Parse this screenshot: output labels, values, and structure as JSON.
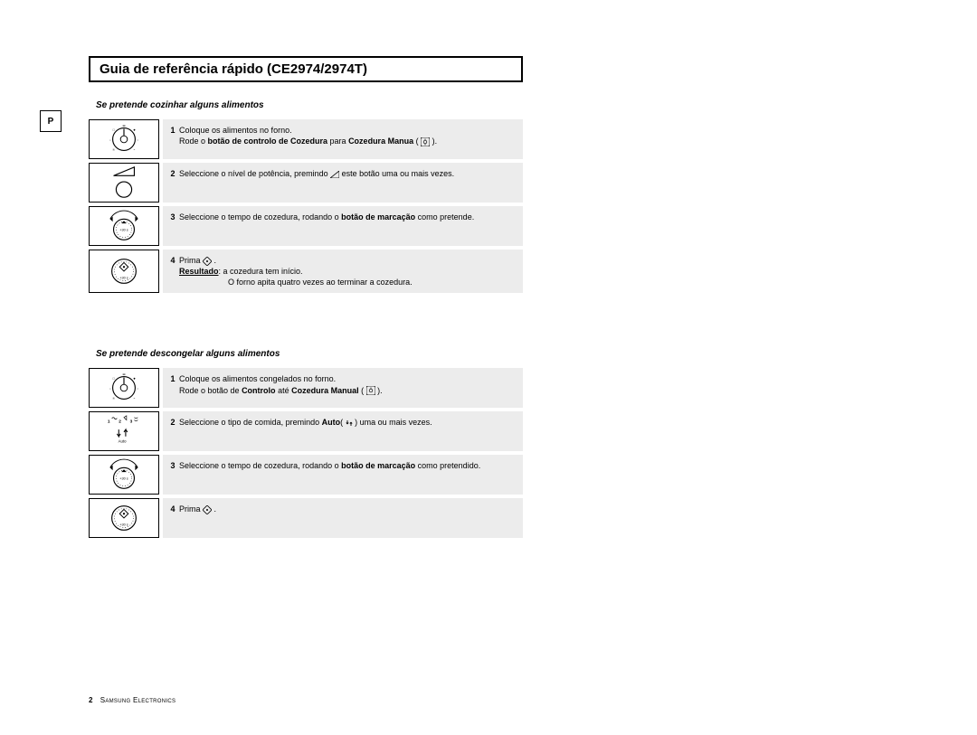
{
  "title": "Guia de referência rápido (CE2974/2974T)",
  "badge": "P",
  "sections": [
    {
      "heading": "Se pretende cozinhar alguns alimentos",
      "steps": [
        {
          "num": "1",
          "html": "Coloque os alimentos no forno.<br>Rode o <b>botão de controlo de Cozedura</b> para <b>Cozedura Manua</b> ( <span class='inline-icon'><svg width='10' height='10'><rect x='0' y='0' width='10' height='10' fill='none' stroke='#000' stroke-width='0.8' rx='2'/><circle cx='5' cy='5' r='1.8' fill='none' stroke='#000' stroke-width='0.7'/><line x1='5' y1='1.5' x2='5' y2='3' stroke='#000' stroke-width='0.7'/><line x1='5' y1='7' x2='5' y2='8.5' stroke='#000' stroke-width='0.7'/></svg></span> ).",
          "icon": "dial-mode"
        },
        {
          "num": "2",
          "html": "Seleccione o nível de potência, premindo  <span class='inline-icon'><svg width='10' height='8'><polygon points='0,8 10,8 10,0' fill='none' stroke='#000' stroke-width='0.8'/></svg></span>  este botão uma ou mais vezes.",
          "icon": "power-button"
        },
        {
          "num": "3",
          "html": "Seleccione o tempo de cozedura, rodando o <b>botão de marcação</b> como pretende.",
          "icon": "dial-time"
        },
        {
          "num": "4",
          "html": "Prima  <span class='inline-icon'><svg width='10' height='10'><polygon points='5,0 10,5 5,10 0,5' fill='none' stroke='#000' stroke-width='0.8'/><circle cx='5' cy='5' r='1' fill='#000'/></svg></span>  .<br><b><u>Resultado</u></b>:   a cozedura tem início.<br><span style='display:inline-block;width:54px'></span>O forno apita quatro vezes ao terminar a cozedura.",
          "icon": "dial-start"
        }
      ]
    },
    {
      "heading": "Se pretende descongelar alguns alimentos",
      "steps": [
        {
          "num": "1",
          "html": "Coloque os alimentos congelados no forno.<br>Rode o botão de <b>Controlo</b> até <b>Cozedura Manual</b> ( <span class='inline-icon'><svg width='10' height='10'><rect x='0' y='0' width='10' height='10' fill='none' stroke='#000' stroke-width='0.8' rx='2'/><circle cx='5' cy='5' r='1.8' fill='none' stroke='#000' stroke-width='0.7'/><line x1='5' y1='1.5' x2='5' y2='3' stroke='#000' stroke-width='0.7'/></svg></span> ).",
          "icon": "dial-mode"
        },
        {
          "num": "2",
          "html": "Seleccione o tipo de comida, premindo <b>Auto</b>( <span class='inline-icon'><svg width='8' height='8'><path d='M2 1 l0 4 M2 5 l-1.2 -1.5 M2 5 l1.2 -1.5 M6 7 l0 -4 M6 3 l-1.2 1.5 M6 3 l1.2 1.5' stroke='#000' stroke-width='0.9' fill='none'/></svg></span> ) uma ou mais vezes.",
          "icon": "auto-button"
        },
        {
          "num": "3",
          "html": "Seleccione o tempo de cozedura, rodando o <b>botão de marcação</b> como pretendido.",
          "icon": "dial-time"
        },
        {
          "num": "4",
          "html": "Prima  <span class='inline-icon'><svg width='10' height='10'><polygon points='5,0 10,5 5,10 0,5' fill='none' stroke='#000' stroke-width='0.8'/><circle cx='5' cy='5' r='1' fill='#000'/></svg></span>  .",
          "icon": "dial-start"
        }
      ]
    }
  ],
  "footer": {
    "page": "2",
    "brand": "Samsung Electronics"
  },
  "colors": {
    "bg": "#ffffff",
    "cell_bg": "#ececec",
    "border": "#000000"
  }
}
